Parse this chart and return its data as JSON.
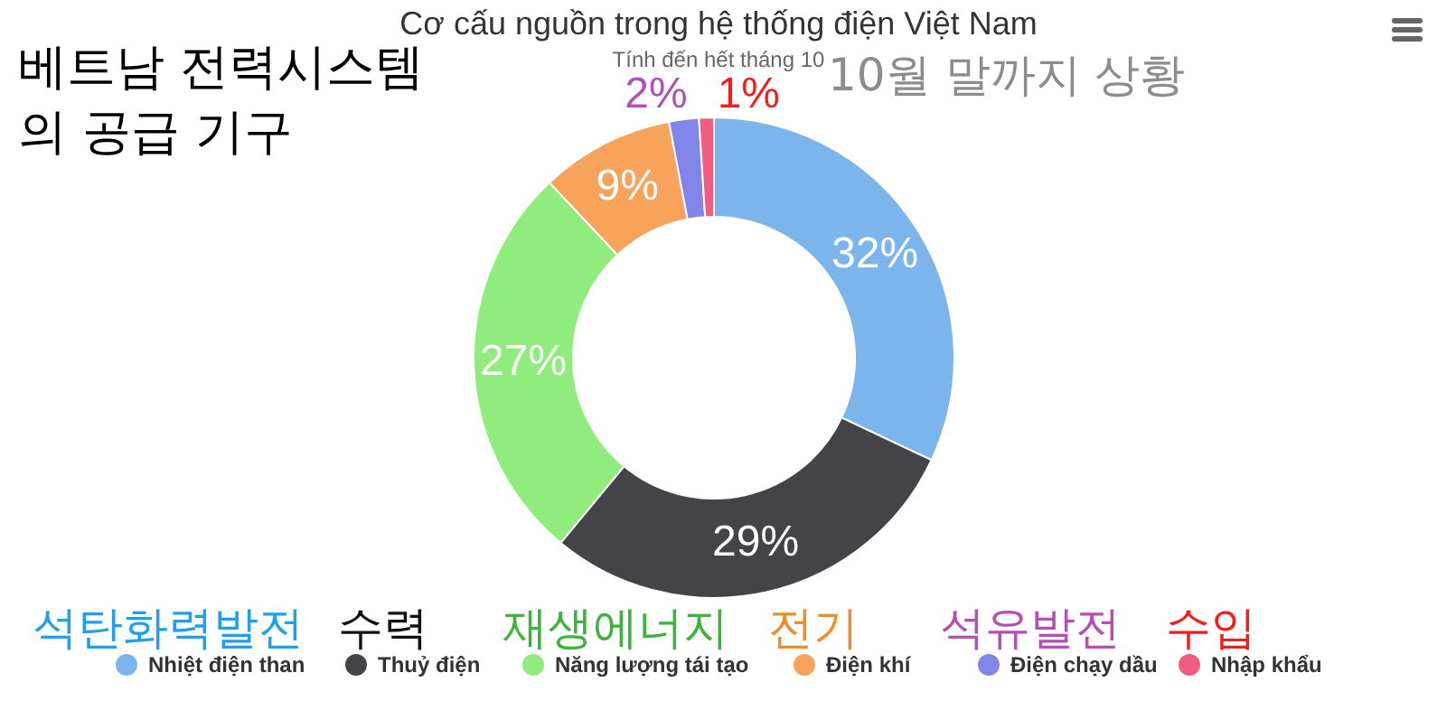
{
  "chart_data": {
    "type": "donut",
    "title": "Cơ cấu nguồn trong hệ thống điện Việt Nam",
    "subtitle": "Tính đến hết tháng 10",
    "categories": [
      "Nhiệt điện than",
      "Thuỷ điện",
      "Năng lượng tái tạo",
      "Điện khí",
      "Điện chạy dầu",
      "Nhập khẩu"
    ],
    "values": [
      32,
      29,
      27,
      9,
      2,
      1
    ],
    "value_labels": [
      "32%",
      "29%",
      "27%",
      "9%",
      "2%",
      "1%"
    ],
    "colors": [
      "#7cb5ec",
      "#434348",
      "#90ed7d",
      "#f7a35c",
      "#8085e9",
      "#f15c80"
    ],
    "legend": "bottom",
    "annotations": [
      "베트남 전력시스템\n의 공급 기구",
      "10월 말까지 상황",
      "석탄화력발전",
      "수력",
      "재생에너지",
      "전기",
      "석유발전",
      "수입"
    ]
  }
}
